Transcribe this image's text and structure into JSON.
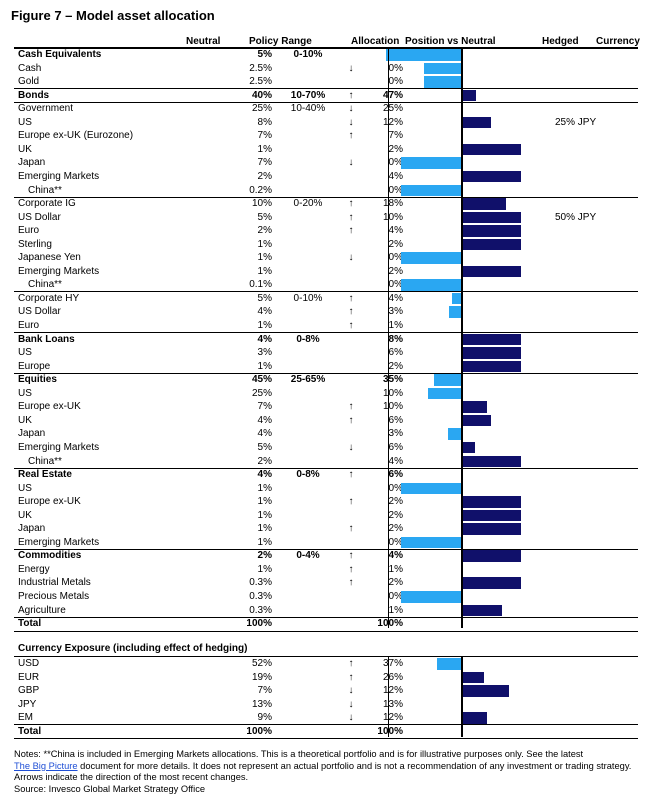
{
  "title": "Figure 7 – Model asset allocation",
  "headers": {
    "neutral": "Neutral",
    "policy": "Policy Range",
    "allocation": "Allocation",
    "position": "Position vs Neutral",
    "hedged": "Hedged",
    "currency": "Currency"
  },
  "colors": {
    "overweight": "#10106a",
    "underweight": "#2aa7f2"
  },
  "rows": [
    {
      "label": "Cash Equivalents",
      "neutral": "5%",
      "policy": "0-10%",
      "arrow": "",
      "allocation": "0%",
      "bold": true,
      "indent": false,
      "diff": -5,
      "hedge": ""
    },
    {
      "label": "Cash",
      "neutral": "2.5%",
      "policy": "",
      "arrow": "↓",
      "allocation": "0%",
      "bold": false,
      "indent": false,
      "diff": -2.5,
      "hedge": ""
    },
    {
      "label": "Gold",
      "neutral": "2.5%",
      "policy": "",
      "arrow": "",
      "allocation": "0%",
      "bold": false,
      "indent": false,
      "diff": -2.5,
      "hedge": ""
    },
    {
      "label": "Bonds",
      "neutral": "40%",
      "policy": "10-70%",
      "arrow": "↑",
      "allocation": "47%",
      "bold": true,
      "indent": false,
      "diff": 1,
      "hedge": ""
    },
    {
      "label": "Government",
      "neutral": "25%",
      "policy": "10-40%",
      "arrow": "↓",
      "allocation": "25%",
      "bold": false,
      "indent": false,
      "diff": 0,
      "hedge": ""
    },
    {
      "label": "US",
      "neutral": "8%",
      "policy": "",
      "arrow": "↓",
      "allocation": "12%",
      "bold": false,
      "indent": false,
      "diff": 2,
      "hedge": "25% JPY"
    },
    {
      "label": "Europe ex-UK (Eurozone)",
      "neutral": "7%",
      "policy": "",
      "arrow": "↑",
      "allocation": "7%",
      "bold": false,
      "indent": false,
      "diff": 0,
      "hedge": ""
    },
    {
      "label": "UK",
      "neutral": "1%",
      "policy": "",
      "arrow": "",
      "allocation": "2%",
      "bold": false,
      "indent": false,
      "diff": 4,
      "hedge": ""
    },
    {
      "label": "Japan",
      "neutral": "7%",
      "policy": "",
      "arrow": "↓",
      "allocation": "0%",
      "bold": false,
      "indent": false,
      "diff": -4,
      "hedge": ""
    },
    {
      "label": "Emerging Markets",
      "neutral": "2%",
      "policy": "",
      "arrow": "",
      "allocation": "4%",
      "bold": false,
      "indent": false,
      "diff": 4,
      "hedge": ""
    },
    {
      "label": "China**",
      "neutral": "0.2%",
      "policy": "",
      "arrow": "",
      "allocation": "0%",
      "bold": false,
      "indent": true,
      "diff": -4,
      "hedge": ""
    },
    {
      "label": "Corporate IG",
      "neutral": "10%",
      "policy": "0-20%",
      "arrow": "↑",
      "allocation": "18%",
      "bold": false,
      "indent": false,
      "diff": 3,
      "hedge": ""
    },
    {
      "label": "US Dollar",
      "neutral": "5%",
      "policy": "",
      "arrow": "↑",
      "allocation": "10%",
      "bold": false,
      "indent": false,
      "diff": 4,
      "hedge": "50% JPY"
    },
    {
      "label": "Euro",
      "neutral": "2%",
      "policy": "",
      "arrow": "↑",
      "allocation": "4%",
      "bold": false,
      "indent": false,
      "diff": 4,
      "hedge": ""
    },
    {
      "label": "Sterling",
      "neutral": "1%",
      "policy": "",
      "arrow": "",
      "allocation": "2%",
      "bold": false,
      "indent": false,
      "diff": 4,
      "hedge": ""
    },
    {
      "label": "Japanese Yen",
      "neutral": "1%",
      "policy": "",
      "arrow": "↓",
      "allocation": "0%",
      "bold": false,
      "indent": false,
      "diff": -4,
      "hedge": ""
    },
    {
      "label": "Emerging Markets",
      "neutral": "1%",
      "policy": "",
      "arrow": "",
      "allocation": "2%",
      "bold": false,
      "indent": false,
      "diff": 4,
      "hedge": ""
    },
    {
      "label": "China**",
      "neutral": "0.1%",
      "policy": "",
      "arrow": "",
      "allocation": "0%",
      "bold": false,
      "indent": true,
      "diff": -4,
      "hedge": ""
    },
    {
      "label": "Corporate HY",
      "neutral": "5%",
      "policy": "0-10%",
      "arrow": "↑",
      "allocation": "4%",
      "bold": false,
      "indent": false,
      "diff": -0.6,
      "hedge": ""
    },
    {
      "label": "US Dollar",
      "neutral": "4%",
      "policy": "",
      "arrow": "↑",
      "allocation": "3%",
      "bold": false,
      "indent": false,
      "diff": -0.8,
      "hedge": ""
    },
    {
      "label": "Euro",
      "neutral": "1%",
      "policy": "",
      "arrow": "↑",
      "allocation": "1%",
      "bold": false,
      "indent": false,
      "diff": 0,
      "hedge": ""
    },
    {
      "label": "Bank Loans",
      "neutral": "4%",
      "policy": "0-8%",
      "arrow": "",
      "allocation": "8%",
      "bold": true,
      "indent": false,
      "diff": 4,
      "hedge": ""
    },
    {
      "label": "US",
      "neutral": "3%",
      "policy": "",
      "arrow": "",
      "allocation": "6%",
      "bold": false,
      "indent": false,
      "diff": 4,
      "hedge": ""
    },
    {
      "label": "Europe",
      "neutral": "1%",
      "policy": "",
      "arrow": "",
      "allocation": "2%",
      "bold": false,
      "indent": false,
      "diff": 4,
      "hedge": ""
    },
    {
      "label": "Equities",
      "neutral": "45%",
      "policy": "25-65%",
      "arrow": "",
      "allocation": "35%",
      "bold": true,
      "indent": false,
      "diff": -1.8,
      "hedge": ""
    },
    {
      "label": "US",
      "neutral": "25%",
      "policy": "",
      "arrow": "",
      "allocation": "10%",
      "bold": false,
      "indent": false,
      "diff": -2.2,
      "hedge": ""
    },
    {
      "label": "Europe ex-UK",
      "neutral": "7%",
      "policy": "",
      "arrow": "↑",
      "allocation": "10%",
      "bold": false,
      "indent": false,
      "diff": 1.7,
      "hedge": ""
    },
    {
      "label": "UK",
      "neutral": "4%",
      "policy": "",
      "arrow": "↑",
      "allocation": "6%",
      "bold": false,
      "indent": false,
      "diff": 2,
      "hedge": ""
    },
    {
      "label": "Japan",
      "neutral": "4%",
      "policy": "",
      "arrow": "",
      "allocation": "3%",
      "bold": false,
      "indent": false,
      "diff": -0.9,
      "hedge": ""
    },
    {
      "label": "Emerging Markets",
      "neutral": "5%",
      "policy": "",
      "arrow": "↓",
      "allocation": "6%",
      "bold": false,
      "indent": false,
      "diff": 0.9,
      "hedge": ""
    },
    {
      "label": "China**",
      "neutral": "2%",
      "policy": "",
      "arrow": "",
      "allocation": "4%",
      "bold": false,
      "indent": true,
      "diff": 4,
      "hedge": ""
    },
    {
      "label": "Real Estate",
      "neutral": "4%",
      "policy": "0-8%",
      "arrow": "↑",
      "allocation": "6%",
      "bold": true,
      "indent": false,
      "diff": 0,
      "hedge": ""
    },
    {
      "label": "US",
      "neutral": "1%",
      "policy": "",
      "arrow": "",
      "allocation": "0%",
      "bold": false,
      "indent": false,
      "diff": -4,
      "hedge": ""
    },
    {
      "label": "Europe ex-UK",
      "neutral": "1%",
      "policy": "",
      "arrow": "↑",
      "allocation": "2%",
      "bold": false,
      "indent": false,
      "diff": 4,
      "hedge": ""
    },
    {
      "label": "UK",
      "neutral": "1%",
      "policy": "",
      "arrow": "",
      "allocation": "2%",
      "bold": false,
      "indent": false,
      "diff": 4,
      "hedge": ""
    },
    {
      "label": "Japan",
      "neutral": "1%",
      "policy": "",
      "arrow": "↑",
      "allocation": "2%",
      "bold": false,
      "indent": false,
      "diff": 4,
      "hedge": ""
    },
    {
      "label": "Emerging Markets",
      "neutral": "1%",
      "policy": "",
      "arrow": "",
      "allocation": "0%",
      "bold": false,
      "indent": false,
      "diff": -4,
      "hedge": ""
    },
    {
      "label": "Commodities",
      "neutral": "2%",
      "policy": "0-4%",
      "arrow": "↑",
      "allocation": "4%",
      "bold": true,
      "indent": false,
      "diff": 4,
      "hedge": ""
    },
    {
      "label": "Energy",
      "neutral": "1%",
      "policy": "",
      "arrow": "↑",
      "allocation": "1%",
      "bold": false,
      "indent": false,
      "diff": 0,
      "hedge": ""
    },
    {
      "label": "Industrial Metals",
      "neutral": "0.3%",
      "policy": "",
      "arrow": "↑",
      "allocation": "2%",
      "bold": false,
      "indent": false,
      "diff": 4,
      "hedge": ""
    },
    {
      "label": "Precious Metals",
      "neutral": "0.3%",
      "policy": "",
      "arrow": "",
      "allocation": "0%",
      "bold": false,
      "indent": false,
      "diff": -4,
      "hedge": ""
    },
    {
      "label": "Agriculture",
      "neutral": "0.3%",
      "policy": "",
      "arrow": "",
      "allocation": "1%",
      "bold": false,
      "indent": false,
      "diff": 2.7,
      "hedge": ""
    },
    {
      "label": "Total",
      "neutral": "100%",
      "policy": "",
      "arrow": "",
      "allocation": "100%",
      "bold": true,
      "indent": false,
      "diff": 0,
      "hedge": ""
    }
  ],
  "currency_exposure": {
    "title": "Currency Exposure (including effect of hedging)",
    "rows": [
      {
        "label": "USD",
        "neutral": "52%",
        "arrow": "↑",
        "allocation": "37%",
        "bold": false,
        "diff": -1.6
      },
      {
        "label": "EUR",
        "neutral": "19%",
        "arrow": "↑",
        "allocation": "26%",
        "bold": false,
        "diff": 1.5
      },
      {
        "label": "GBP",
        "neutral": "7%",
        "arrow": "↓",
        "allocation": "12%",
        "bold": false,
        "diff": 3.2
      },
      {
        "label": "JPY",
        "neutral": "13%",
        "arrow": "↓",
        "allocation": "13%",
        "bold": false,
        "diff": 0
      },
      {
        "label": "EM",
        "neutral": "9%",
        "arrow": "↓",
        "allocation": "12%",
        "bold": false,
        "diff": 1.7
      },
      {
        "label": "Total",
        "neutral": "100%",
        "arrow": "",
        "allocation": "100%",
        "bold": true,
        "diff": 0
      }
    ]
  },
  "notes": {
    "line1": "Notes: **China is included in Emerging Markets allocations. This is a theoretical portfolio and is for illustrative purposes only. See the latest",
    "link": "The Big Picture",
    "line2_rest": " document for more details. It does not represent an actual portfolio and is not a recommendation of any investment or trading strategy. Arrows indicate the direction of the most recent changes.",
    "source": "Source: Invesco Global Market Strategy Office"
  }
}
